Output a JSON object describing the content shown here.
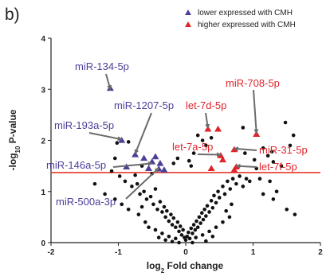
{
  "panel_label": "b)",
  "colors": {
    "lower": "#4b3f99",
    "higher": "#e0242a",
    "threshold": "#e8382a",
    "points": "#111111",
    "arrows": "#6b6b6b",
    "axis": "#222222"
  },
  "chart_data": {
    "type": "scatter",
    "title": "",
    "xlabel_base": "log",
    "xlabel_sub": "2",
    "xlabel_rest": " Fold change",
    "ylabel_base": "-log",
    "ylabel_sub": "10",
    "ylabel_rest": " P-value",
    "xlim": [
      -2,
      2
    ],
    "ylim": [
      0,
      4
    ],
    "xticks": [
      -2,
      -1,
      0,
      1,
      2
    ],
    "yticks": [
      0,
      1,
      2,
      3,
      4
    ],
    "xtick_labels": [
      "-2",
      "-1",
      "0",
      "1",
      "2"
    ],
    "ytick_labels": [
      "0",
      "1",
      "2",
      "3",
      "4"
    ],
    "threshold_y": 1.37,
    "legend": {
      "position": "top-right",
      "items": [
        {
          "marker": "triangle",
          "color_key": "lower",
          "label": "lower expressed with CMH"
        },
        {
          "marker": "triangle",
          "color_key": "higher",
          "label": "higher expressed with CMH"
        }
      ]
    },
    "series": [
      {
        "name": "lower expressed with CMH",
        "marker": "triangle",
        "points": [
          [
            -1.12,
            3.02
          ],
          [
            -0.75,
            1.72
          ],
          [
            -0.62,
            1.65
          ],
          [
            -0.45,
            1.68
          ],
          [
            -0.88,
            1.48
          ],
          [
            -0.55,
            1.45
          ],
          [
            -0.4,
            1.44
          ],
          [
            -0.32,
            1.42
          ],
          [
            -0.95,
            2.0
          ],
          [
            -0.38,
            1.55
          ],
          [
            -0.5,
            1.58
          ]
        ]
      },
      {
        "name": "higher expressed with CMH",
        "marker": "triangle",
        "points": [
          [
            0.33,
            2.22
          ],
          [
            0.48,
            2.22
          ],
          [
            0.38,
            1.45
          ],
          [
            0.52,
            1.7
          ],
          [
            0.55,
            1.62
          ],
          [
            0.72,
            1.82
          ],
          [
            0.75,
            1.48
          ],
          [
            1.05,
            2.12
          ],
          [
            0.72,
            1.42
          ]
        ]
      },
      {
        "name": "",
        "marker": "dot",
        "points": [
          [
            -0.85,
            1.97
          ],
          [
            -1.05,
            1.65
          ],
          [
            -0.98,
            1.3
          ],
          [
            -0.9,
            1.2
          ],
          [
            -0.8,
            1.1
          ],
          [
            -0.72,
            1.15
          ],
          [
            -0.68,
            0.95
          ],
          [
            -0.62,
            1.0
          ],
          [
            -0.58,
            0.85
          ],
          [
            -0.52,
            0.9
          ],
          [
            -0.48,
            0.75
          ],
          [
            -0.45,
            1.05
          ],
          [
            -0.42,
            0.65
          ],
          [
            -0.38,
            0.8
          ],
          [
            -0.35,
            0.6
          ],
          [
            -0.32,
            0.7
          ],
          [
            -0.3,
            0.5
          ],
          [
            -0.28,
            0.62
          ],
          [
            -0.25,
            0.42
          ],
          [
            -0.22,
            0.55
          ],
          [
            -0.2,
            0.35
          ],
          [
            -0.18,
            0.48
          ],
          [
            -0.15,
            0.3
          ],
          [
            -0.12,
            0.4
          ],
          [
            -0.1,
            0.22
          ],
          [
            -0.08,
            0.32
          ],
          [
            -0.06,
            0.15
          ],
          [
            -0.04,
            0.25
          ],
          [
            -0.02,
            0.1
          ],
          [
            0.0,
            0.05
          ],
          [
            0.02,
            0.12
          ],
          [
            0.04,
            0.2
          ],
          [
            0.06,
            0.08
          ],
          [
            0.08,
            0.28
          ],
          [
            0.1,
            0.18
          ],
          [
            0.12,
            0.35
          ],
          [
            0.14,
            0.25
          ],
          [
            0.16,
            0.42
          ],
          [
            0.18,
            0.3
          ],
          [
            0.2,
            0.5
          ],
          [
            0.22,
            0.38
          ],
          [
            0.24,
            0.58
          ],
          [
            0.26,
            0.45
          ],
          [
            0.28,
            0.65
          ],
          [
            0.3,
            0.52
          ],
          [
            0.32,
            0.72
          ],
          [
            0.35,
            0.6
          ],
          [
            0.38,
            0.82
          ],
          [
            0.4,
            0.68
          ],
          [
            0.42,
            0.92
          ],
          [
            0.45,
            0.78
          ],
          [
            0.48,
            1.0
          ],
          [
            0.5,
            0.88
          ],
          [
            0.55,
            1.1
          ],
          [
            0.58,
            0.95
          ],
          [
            0.62,
            1.2
          ],
          [
            0.66,
            1.05
          ],
          [
            0.7,
            1.25
          ],
          [
            0.75,
            1.15
          ],
          [
            0.8,
            1.3
          ],
          [
            0.85,
            1.1
          ],
          [
            0.9,
            1.25
          ],
          [
            0.95,
            1.2
          ],
          [
            -0.6,
            0.4
          ],
          [
            -0.55,
            0.3
          ],
          [
            -0.45,
            0.25
          ],
          [
            -0.35,
            0.18
          ],
          [
            -0.25,
            0.12
          ],
          [
            -0.15,
            0.08
          ],
          [
            0.15,
            0.1
          ],
          [
            0.25,
            0.15
          ],
          [
            0.35,
            0.22
          ],
          [
            0.45,
            0.3
          ],
          [
            0.55,
            0.4
          ],
          [
            0.65,
            0.5
          ],
          [
            -0.7,
            0.55
          ],
          [
            -0.65,
            0.7
          ],
          [
            0.6,
            0.62
          ],
          [
            0.68,
            0.75
          ],
          [
            -0.3,
            0.05
          ],
          [
            -0.2,
            0.02
          ],
          [
            0.3,
            0.03
          ],
          [
            -0.1,
            0.0
          ],
          [
            0.1,
            0.0
          ],
          [
            -0.4,
            0.1
          ],
          [
            0.4,
            0.12
          ],
          [
            0.18,
            2.1
          ],
          [
            0.25,
            2.0
          ],
          [
            0.12,
            1.75
          ],
          [
            0.05,
            1.6
          ],
          [
            0.3,
            1.9
          ],
          [
            -0.12,
            1.65
          ],
          [
            -0.18,
            1.55
          ],
          [
            0.08,
            1.5
          ],
          [
            0.38,
            2.05
          ],
          [
            0.88,
            1.75
          ],
          [
            1.02,
            1.62
          ],
          [
            1.15,
            1.85
          ],
          [
            1.22,
            1.7
          ],
          [
            1.28,
            1.78
          ],
          [
            1.48,
            2.35
          ],
          [
            1.6,
            2.1
          ],
          [
            1.55,
            1.9
          ],
          [
            1.42,
            1.5
          ],
          [
            1.3,
            1.58
          ],
          [
            1.1,
            1.25
          ],
          [
            1.25,
            1.2
          ],
          [
            1.15,
            0.95
          ],
          [
            1.3,
            0.85
          ],
          [
            1.5,
            0.65
          ],
          [
            1.62,
            0.55
          ],
          [
            1.35,
            1.0
          ],
          [
            1.05,
            1.45
          ],
          [
            0.85,
            2.25
          ],
          [
            -1.35,
            1.15
          ],
          [
            -1.2,
            0.95
          ],
          [
            -1.05,
            0.85
          ],
          [
            -0.95,
            0.75
          ],
          [
            -0.85,
            0.65
          ],
          [
            -1.02,
            1.95
          ],
          [
            -0.65,
            1.5
          ],
          [
            -0.5,
            1.35
          ],
          [
            -0.75,
            1.32
          ],
          [
            -1.1,
            1.4
          ]
        ]
      }
    ],
    "annotations": [
      {
        "text": "miR-134-5p",
        "color_key": "lower"
      },
      {
        "text": "miR-1207-5p",
        "color_key": "lower"
      },
      {
        "text": "miR-193a-5p",
        "color_key": "lower"
      },
      {
        "text": "miR-146a-5p",
        "color_key": "lower"
      },
      {
        "text": "miR-500a-3p",
        "color_key": "lower"
      },
      {
        "text": "miR-708-5p",
        "color_key": "higher"
      },
      {
        "text": "let-7d-5p",
        "color_key": "higher"
      },
      {
        "text": "let-7a-5p",
        "color_key": "higher"
      },
      {
        "text": "miR-31-5p",
        "color_key": "higher"
      },
      {
        "text": "let-7f-5p",
        "color_key": "higher"
      }
    ]
  }
}
